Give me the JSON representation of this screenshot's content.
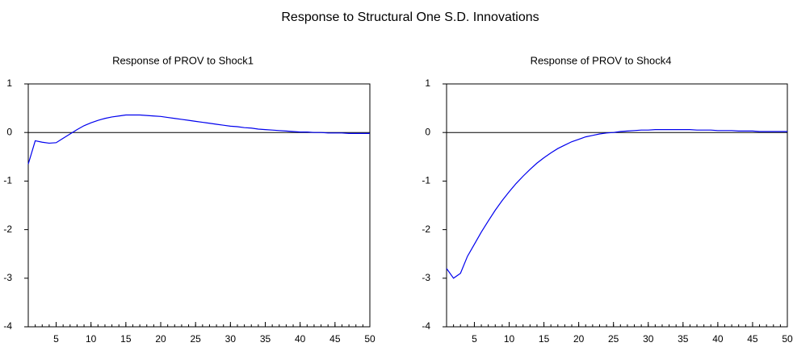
{
  "title": "Response to Structural One S.D. Innovations",
  "chart_data": [
    {
      "type": "line",
      "title": "Response of PROV to Shock1",
      "color": "#0000ee",
      "zero_line": true,
      "x": [
        1,
        2,
        3,
        4,
        5,
        6,
        7,
        8,
        9,
        10,
        11,
        12,
        13,
        14,
        15,
        16,
        17,
        18,
        19,
        20,
        21,
        22,
        23,
        24,
        25,
        26,
        27,
        28,
        29,
        30,
        31,
        32,
        33,
        34,
        35,
        36,
        37,
        38,
        39,
        40,
        41,
        42,
        43,
        44,
        45,
        46,
        47,
        48,
        49,
        50
      ],
      "values": [
        -0.65,
        -0.17,
        -0.2,
        -0.22,
        -0.21,
        -0.12,
        -0.03,
        0.06,
        0.14,
        0.2,
        0.25,
        0.29,
        0.32,
        0.34,
        0.36,
        0.36,
        0.36,
        0.35,
        0.34,
        0.33,
        0.31,
        0.29,
        0.27,
        0.25,
        0.23,
        0.21,
        0.19,
        0.17,
        0.15,
        0.13,
        0.12,
        0.1,
        0.09,
        0.07,
        0.06,
        0.05,
        0.04,
        0.03,
        0.02,
        0.01,
        0.01,
        0.0,
        0.0,
        -0.01,
        -0.01,
        -0.01,
        -0.02,
        -0.02,
        -0.02,
        -0.02
      ],
      "xlim": [
        1,
        50
      ],
      "xticks": [
        5,
        10,
        15,
        20,
        25,
        30,
        35,
        40,
        45,
        50
      ],
      "ylim": [
        -4,
        1
      ],
      "yticks": [
        -4,
        -3,
        -2,
        -1,
        0,
        1
      ]
    },
    {
      "type": "line",
      "title": "Response of PROV to Shock4",
      "color": "#0000ee",
      "zero_line": true,
      "x": [
        1,
        2,
        3,
        4,
        5,
        6,
        7,
        8,
        9,
        10,
        11,
        12,
        13,
        14,
        15,
        16,
        17,
        18,
        19,
        20,
        21,
        22,
        23,
        24,
        25,
        26,
        27,
        28,
        29,
        30,
        31,
        32,
        33,
        34,
        35,
        36,
        37,
        38,
        39,
        40,
        41,
        42,
        43,
        44,
        45,
        46,
        47,
        48,
        49,
        50
      ],
      "values": [
        -2.8,
        -3.0,
        -2.9,
        -2.55,
        -2.3,
        -2.05,
        -1.82,
        -1.6,
        -1.4,
        -1.22,
        -1.05,
        -0.9,
        -0.76,
        -0.63,
        -0.52,
        -0.42,
        -0.33,
        -0.26,
        -0.19,
        -0.14,
        -0.09,
        -0.06,
        -0.03,
        -0.01,
        0.0,
        0.02,
        0.03,
        0.04,
        0.05,
        0.05,
        0.06,
        0.06,
        0.06,
        0.06,
        0.06,
        0.06,
        0.05,
        0.05,
        0.05,
        0.04,
        0.04,
        0.04,
        0.03,
        0.03,
        0.03,
        0.02,
        0.02,
        0.02,
        0.02,
        0.02
      ],
      "xlim": [
        1,
        50
      ],
      "xticks": [
        5,
        10,
        15,
        20,
        25,
        30,
        35,
        40,
        45,
        50
      ],
      "ylim": [
        -4,
        1
      ],
      "yticks": [
        -4,
        -3,
        -2,
        -1,
        0,
        1
      ]
    }
  ]
}
